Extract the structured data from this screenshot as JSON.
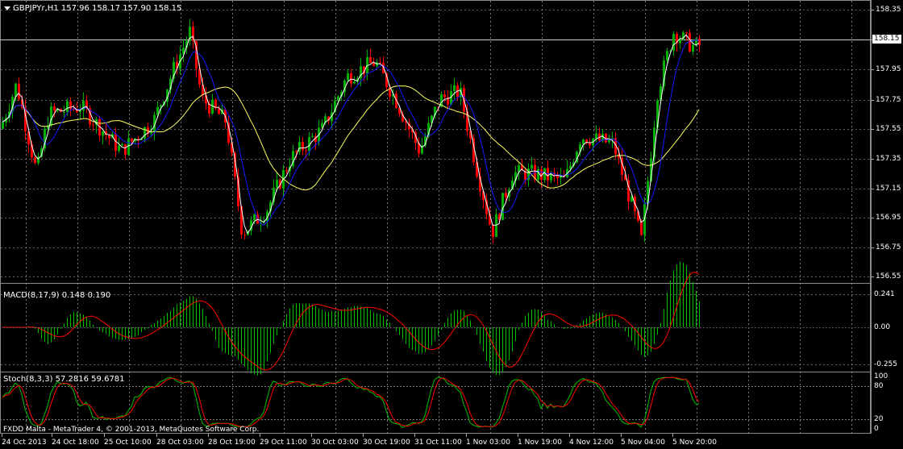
{
  "main_header": "GBPJPYr,H1  157.96 158.17 157.90 158.15",
  "macd_header": "MACD(8,17,9) 0.148 0.190",
  "stoch_header": "Stoch(8,3,3) 57.2816 59.6781",
  "copyright": "FXDD Malta - MetaTrader 4, © 2001-2013, MetaQuotes Software Corp.",
  "current_price": "158.15",
  "price_axis": [
    "158.35",
    "158.15",
    "157.95",
    "157.75",
    "157.55",
    "157.35",
    "157.15",
    "156.95",
    "156.75",
    "156.55"
  ],
  "macd_axis": [
    "0.241",
    "0.00",
    "-0.255"
  ],
  "stoch_axis": [
    "100",
    "80",
    "20",
    "0"
  ],
  "time_axis": [
    "24 Oct 2013",
    "24 Oct 18:00",
    "25 Oct 10:00",
    "28 Oct 03:00",
    "28 Oct 19:00",
    "29 Oct 11:00",
    "30 Oct 03:00",
    "30 Oct 19:00",
    "31 Oct 11:00",
    "1 Nov 03:00",
    "1 Nov 19:00",
    "4 Nov 12:00",
    "5 Nov 04:00",
    "5 Nov 20:00"
  ],
  "colors": {
    "background": "#000000",
    "grid": "#c0c0c0",
    "bull_candle": "#00b000",
    "bear_candle": "#ff0000",
    "ma_white": "#ffffff",
    "ma_blue": "#1818ff",
    "ma_yellow": "#ffff60",
    "macd_hist": "#00c000",
    "macd_signal": "#ff0000",
    "stoch_main": "#00c000",
    "stoch_signal": "#ff0000"
  },
  "icons": {
    "menu": "triangle-down-icon"
  }
}
